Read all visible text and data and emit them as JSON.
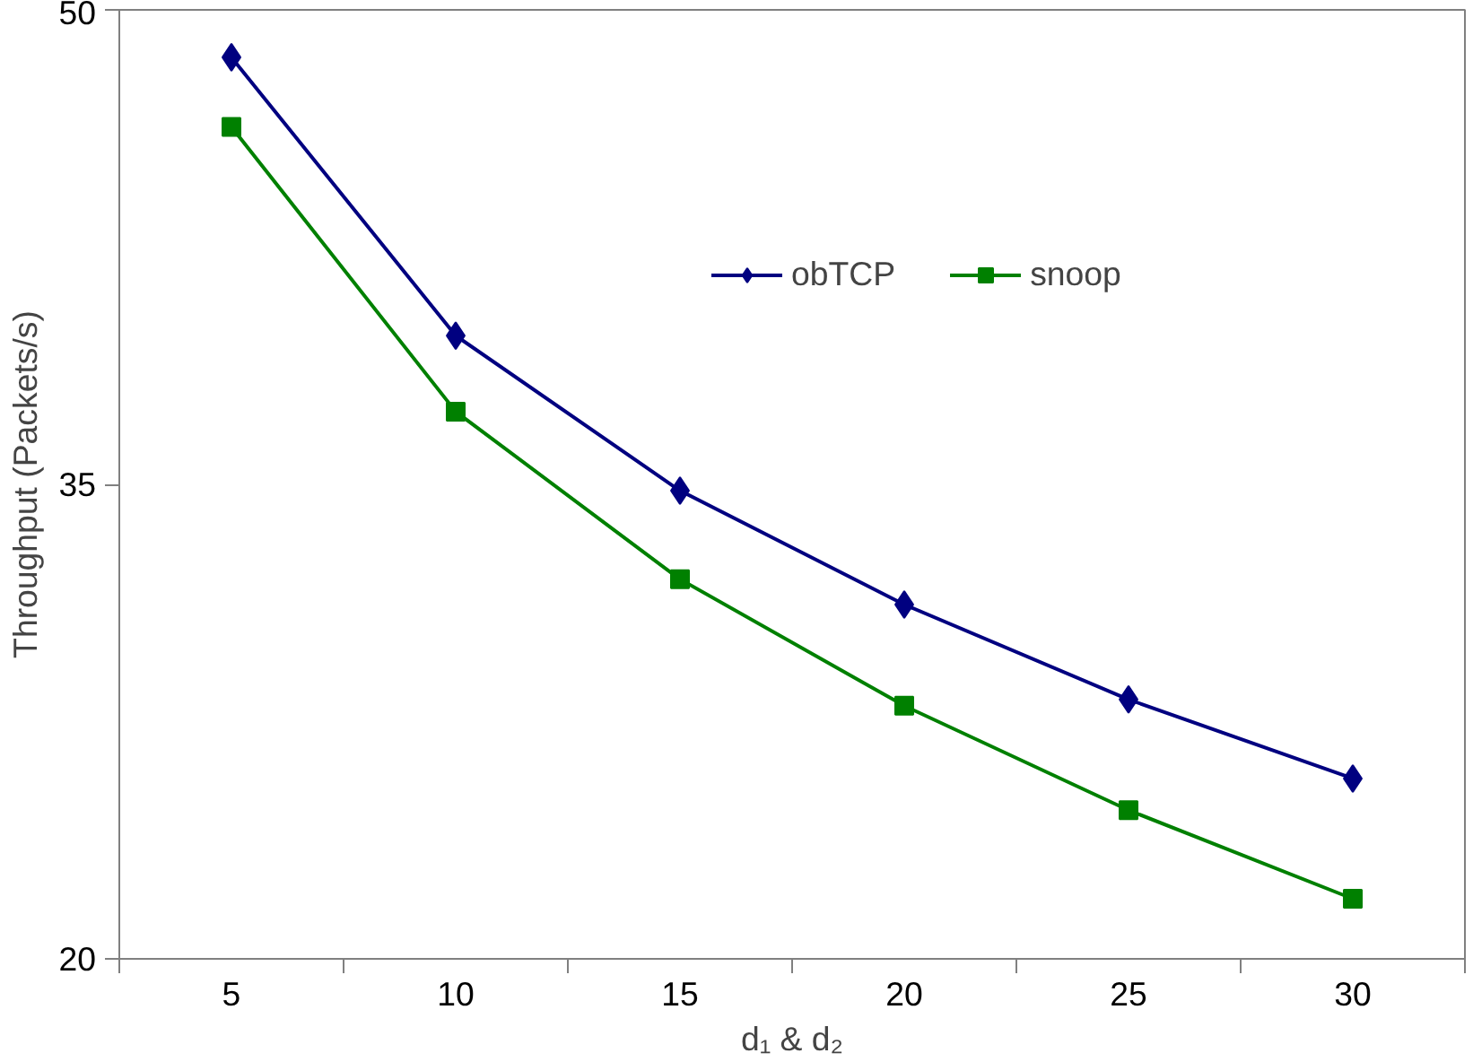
{
  "chart_data": {
    "type": "line",
    "xlabel": "d₁ & d₂",
    "ylabel": "Throughput (Packets/s)",
    "categories": [
      "5",
      "10",
      "15",
      "20",
      "25",
      "30"
    ],
    "series": [
      {
        "name": "obTCP",
        "color": "#000080",
        "marker": "diamond",
        "values": [
          48.5,
          39.7,
          34.8,
          31.2,
          28.2,
          25.7
        ]
      },
      {
        "name": "snoop",
        "color": "#008000",
        "marker": "square",
        "values": [
          46.3,
          37.3,
          32.0,
          28.0,
          24.7,
          21.9
        ]
      }
    ],
    "ylim": [
      20,
      50
    ],
    "yticks": [
      20,
      35,
      50
    ],
    "grid": false,
    "legend": "top right",
    "line_style": "solid"
  }
}
